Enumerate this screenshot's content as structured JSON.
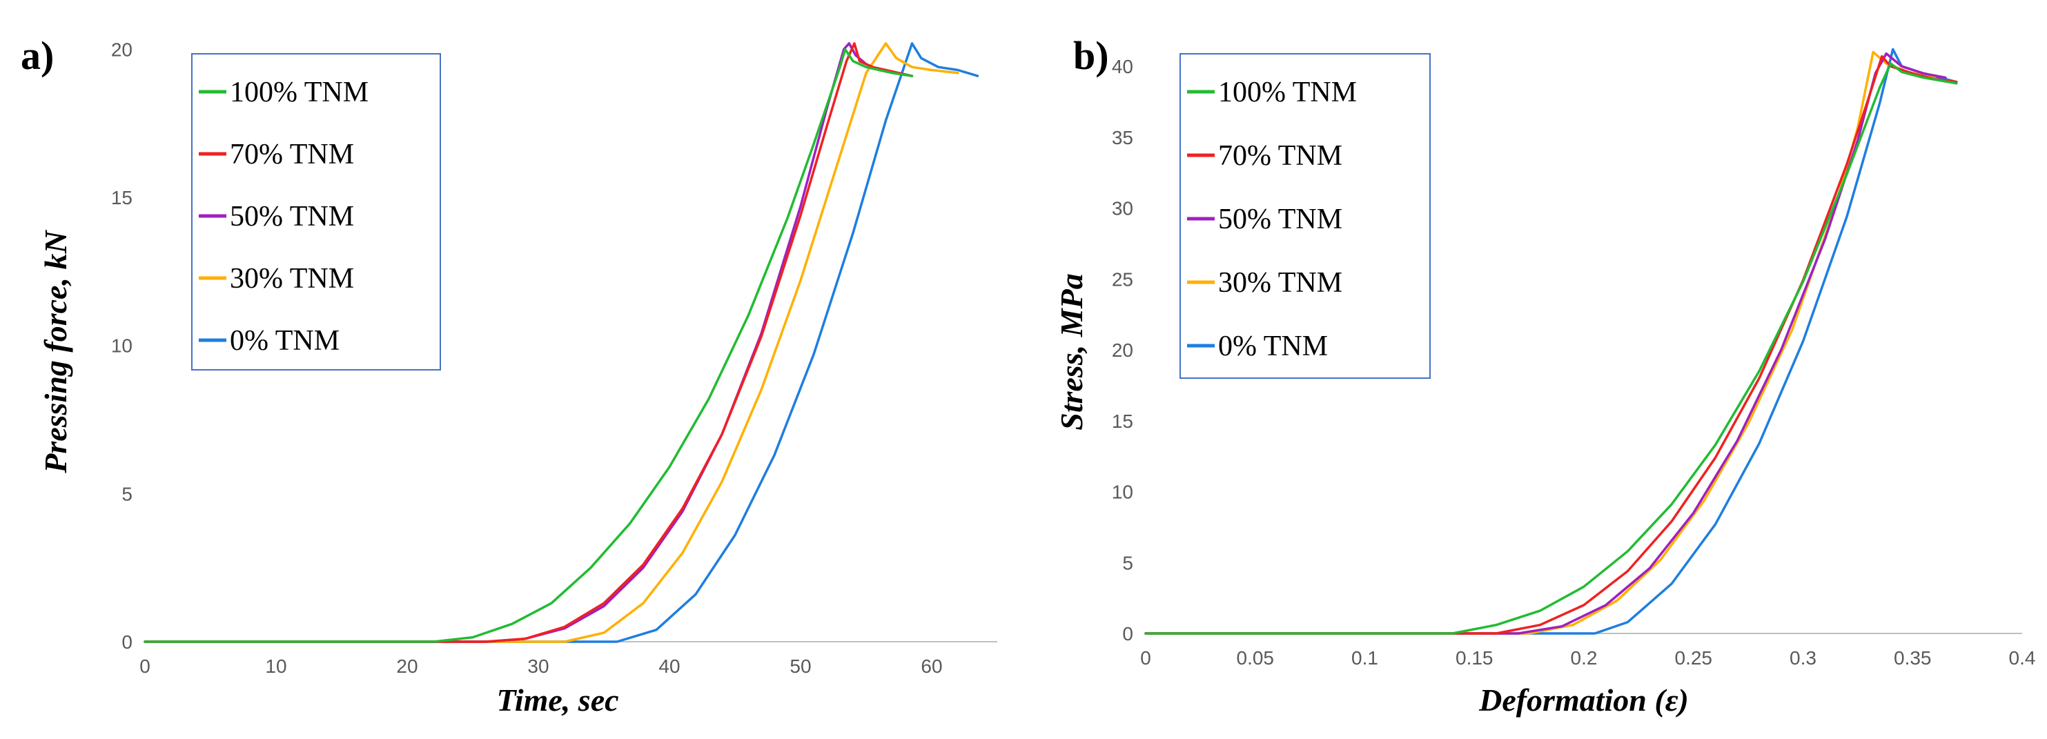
{
  "chart_data": [
    {
      "panel_label": "a)",
      "type": "line",
      "title": "",
      "xlabel": "Time, sec",
      "ylabel": "Pressing force, kN",
      "xlim": [
        0,
        65
      ],
      "ylim": [
        0,
        20.5
      ],
      "xticks": [
        0,
        10,
        20,
        30,
        40,
        50,
        60
      ],
      "yticks": [
        0,
        5,
        10,
        15,
        20
      ],
      "xtick_labels": [
        "0",
        "10",
        "20",
        "30",
        "40",
        "50",
        "60"
      ],
      "ytick_labels": [
        "0",
        "5",
        "10",
        "15",
        "20"
      ],
      "legend_position": "top-left",
      "series": [
        {
          "name": "100% TNM",
          "color": "#22bb33",
          "x": [
            0,
            22,
            25,
            28,
            31,
            34,
            37,
            40,
            43,
            46,
            49,
            51,
            53,
            53.4,
            54,
            55,
            56,
            57,
            58.5
          ],
          "y": [
            0,
            0,
            0.15,
            0.6,
            1.3,
            2.5,
            4.0,
            5.9,
            8.2,
            11.0,
            14.3,
            16.8,
            19.4,
            20.0,
            19.6,
            19.4,
            19.3,
            19.2,
            19.1
          ]
        },
        {
          "name": "70% TNM",
          "color": "#ee2222",
          "x": [
            0,
            26,
            29,
            32,
            35,
            38,
            41,
            44,
            47,
            50,
            52,
            53.5,
            54.1,
            54.5,
            55.5,
            56.5,
            57.5,
            58.5
          ],
          "y": [
            0,
            0,
            0.1,
            0.5,
            1.3,
            2.6,
            4.5,
            7.0,
            10.3,
            14.4,
            17.4,
            19.6,
            20.2,
            19.6,
            19.4,
            19.3,
            19.2,
            19.1
          ]
        },
        {
          "name": "50% TNM",
          "color": "#a020c0",
          "x": [
            0,
            26,
            29,
            32,
            35,
            38,
            41,
            44,
            47,
            50,
            52,
            53.3,
            53.7,
            54.2,
            55,
            56,
            57.5
          ],
          "y": [
            0,
            0,
            0.1,
            0.45,
            1.2,
            2.5,
            4.4,
            7.0,
            10.4,
            14.7,
            18.0,
            20.0,
            20.2,
            19.8,
            19.5,
            19.3,
            19.2
          ]
        },
        {
          "name": "30% TNM",
          "color": "#ffb000",
          "x": [
            0,
            32,
            35,
            38,
            41,
            44,
            47,
            50,
            53,
            55,
            56.5,
            57.3,
            58.5,
            60,
            62
          ],
          "y": [
            0,
            0,
            0.3,
            1.3,
            3.0,
            5.4,
            8.5,
            12.2,
            16.4,
            19.2,
            20.2,
            19.7,
            19.4,
            19.3,
            19.2
          ]
        },
        {
          "name": "0% TNM",
          "color": "#1e7ee0",
          "x": [
            0,
            36,
            39,
            42,
            45,
            48,
            51,
            54,
            56.5,
            58.5,
            59.2,
            60.5,
            62,
            63.5
          ],
          "y": [
            0,
            0,
            0.4,
            1.6,
            3.6,
            6.3,
            9.7,
            13.8,
            17.6,
            20.2,
            19.7,
            19.4,
            19.3,
            19.1
          ]
        }
      ]
    },
    {
      "panel_label": "b)",
      "type": "line",
      "title": "",
      "xlabel": "Deformation (ε)",
      "ylabel": "Stress, MPa",
      "xlim": [
        0,
        0.4
      ],
      "ylim": [
        0,
        42
      ],
      "xticks": [
        0,
        0.05,
        0.1,
        0.15,
        0.2,
        0.25,
        0.3,
        0.35,
        0.4
      ],
      "yticks": [
        0,
        5,
        10,
        15,
        20,
        25,
        30,
        35,
        40
      ],
      "xtick_labels": [
        "0",
        "0.05",
        "0.1",
        "0.15",
        "0.2",
        "0.25",
        "0.3",
        "0.35",
        "0.4"
      ],
      "ytick_labels": [
        "0",
        "5",
        "10",
        "15",
        "20",
        "25",
        "30",
        "35",
        "40"
      ],
      "legend_position": "top-left",
      "series": [
        {
          "name": "100% TNM",
          "color": "#22bb33",
          "x": [
            0,
            0.14,
            0.16,
            0.18,
            0.2,
            0.22,
            0.24,
            0.26,
            0.28,
            0.3,
            0.32,
            0.335,
            0.34,
            0.345,
            0.355,
            0.37
          ],
          "y": [
            0,
            0,
            0.6,
            1.6,
            3.3,
            5.8,
            9.1,
            13.3,
            18.5,
            24.8,
            32.4,
            38.5,
            40.2,
            39.6,
            39.2,
            38.8
          ]
        },
        {
          "name": "70% TNM",
          "color": "#ee2222",
          "x": [
            0,
            0.16,
            0.18,
            0.2,
            0.22,
            0.24,
            0.26,
            0.28,
            0.3,
            0.32,
            0.33,
            0.336,
            0.34,
            0.35,
            0.36,
            0.37
          ],
          "y": [
            0,
            0,
            0.6,
            2.0,
            4.4,
            7.9,
            12.4,
            18.0,
            24.9,
            33.1,
            37.8,
            40.7,
            40.0,
            39.5,
            39.1,
            38.9
          ]
        },
        {
          "name": "50% TNM",
          "color": "#a020c0",
          "x": [
            0,
            0.17,
            0.19,
            0.21,
            0.23,
            0.25,
            0.27,
            0.29,
            0.31,
            0.325,
            0.333,
            0.338,
            0.345,
            0.355,
            0.365
          ],
          "y": [
            0,
            0,
            0.5,
            2.0,
            4.6,
            8.5,
            13.6,
            20.0,
            27.8,
            34.8,
            39.5,
            40.9,
            40.0,
            39.5,
            39.2
          ]
        },
        {
          "name": "30% TNM",
          "color": "#ffb000",
          "x": [
            0,
            0.175,
            0.195,
            0.215,
            0.235,
            0.255,
            0.275,
            0.295,
            0.315,
            0.325,
            0.332,
            0.338,
            0.348,
            0.36
          ],
          "y": [
            0,
            0,
            0.6,
            2.3,
            5.2,
            9.4,
            14.8,
            21.4,
            30.2,
            35.7,
            41.0,
            40.2,
            39.6,
            39.2
          ]
        },
        {
          "name": "0% TNM",
          "color": "#1e7ee0",
          "x": [
            0,
            0.205,
            0.22,
            0.24,
            0.26,
            0.28,
            0.3,
            0.32,
            0.335,
            0.341,
            0.345,
            0.355,
            0.365,
            0.37
          ],
          "y": [
            0,
            0,
            0.8,
            3.5,
            7.7,
            13.4,
            20.6,
            29.4,
            37.4,
            41.2,
            40.0,
            39.5,
            39.1,
            38.9
          ]
        }
      ]
    }
  ]
}
